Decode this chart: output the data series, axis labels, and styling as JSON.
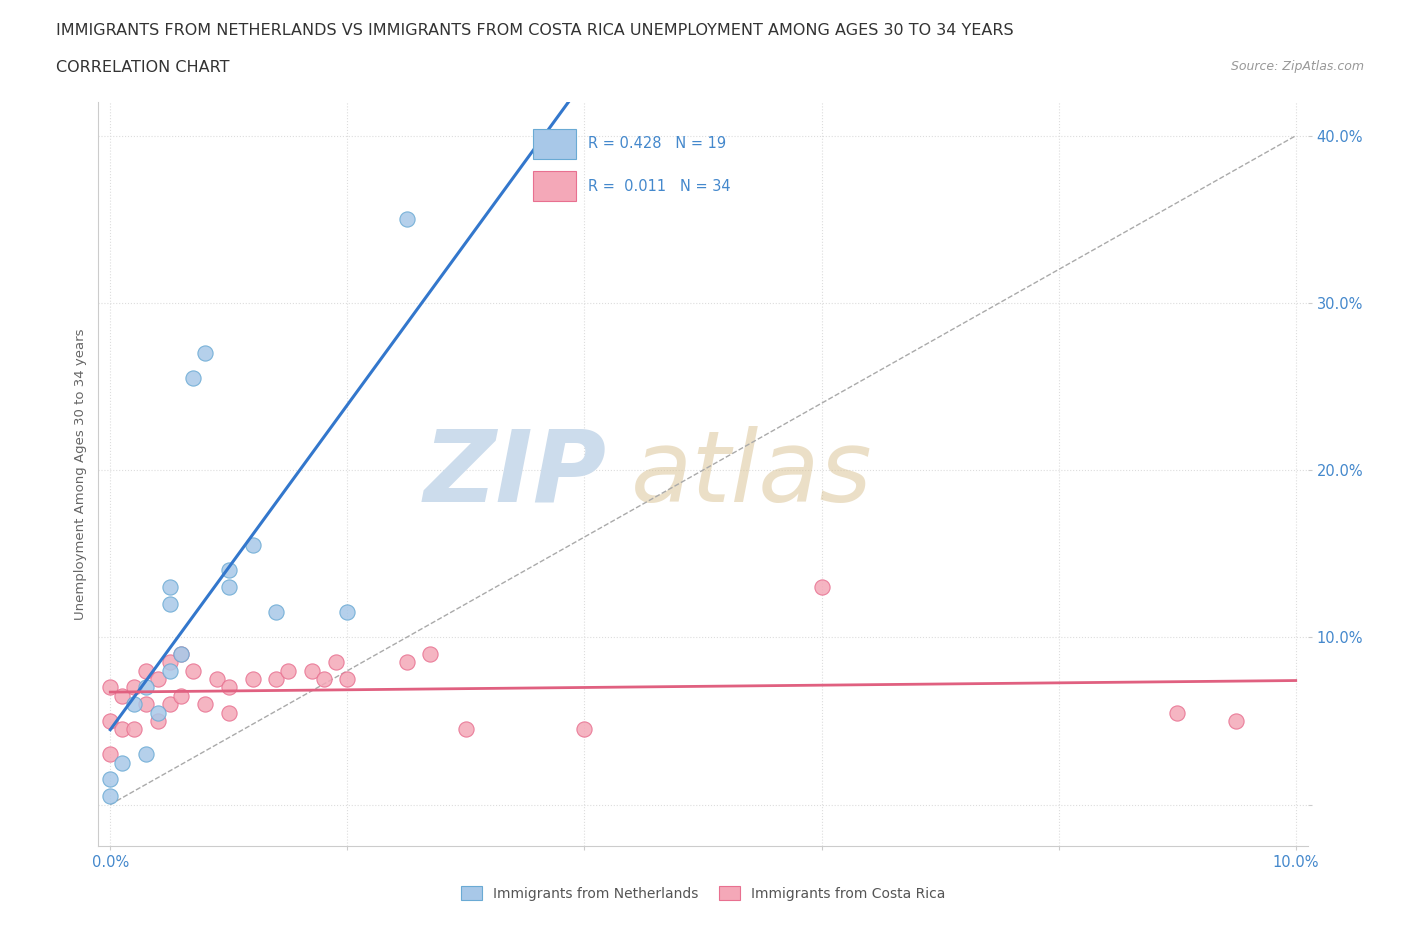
{
  "title_line1": "IMMIGRANTS FROM NETHERLANDS VS IMMIGRANTS FROM COSTA RICA UNEMPLOYMENT AMONG AGES 30 TO 34 YEARS",
  "title_line2": "CORRELATION CHART",
  "source_text": "Source: ZipAtlas.com",
  "ylabel": "Unemployment Among Ages 30 to 34 years",
  "xlim": [
    -0.001,
    0.101
  ],
  "ylim": [
    -0.025,
    0.42
  ],
  "x_ticks": [
    0.0,
    0.02,
    0.04,
    0.06,
    0.08,
    0.1
  ],
  "x_tick_labels": [
    "0.0%",
    "",
    "",
    "",
    "",
    "10.0%"
  ],
  "y_ticks": [
    0.0,
    0.1,
    0.2,
    0.3,
    0.4
  ],
  "y_tick_labels": [
    "",
    "10.0%",
    "20.0%",
    "30.0%",
    "40.0%"
  ],
  "netherlands_color": "#a8c8e8",
  "costa_rica_color": "#f4a8b8",
  "nl_edge_color": "#6aaad4",
  "cr_edge_color": "#e87090",
  "regression_nl_color": "#3377cc",
  "regression_cr_color": "#e06080",
  "dashed_line_color": "#aaaaaa",
  "watermark_color": "#ccdcec",
  "legend_R_netherlands": "0.428",
  "legend_N_netherlands": "19",
  "legend_R_costa_rica": "0.011",
  "legend_N_costa_rica": "34",
  "netherlands_x": [
    0.0,
    0.0,
    0.001,
    0.002,
    0.003,
    0.003,
    0.004,
    0.005,
    0.005,
    0.005,
    0.006,
    0.007,
    0.008,
    0.01,
    0.01,
    0.012,
    0.014,
    0.02,
    0.025
  ],
  "netherlands_y": [
    0.005,
    0.015,
    0.025,
    0.06,
    0.03,
    0.07,
    0.055,
    0.08,
    0.12,
    0.13,
    0.09,
    0.255,
    0.27,
    0.13,
    0.14,
    0.155,
    0.115,
    0.115,
    0.35
  ],
  "costa_rica_x": [
    0.0,
    0.0,
    0.0,
    0.001,
    0.001,
    0.002,
    0.002,
    0.003,
    0.003,
    0.004,
    0.004,
    0.005,
    0.005,
    0.006,
    0.006,
    0.007,
    0.008,
    0.009,
    0.01,
    0.01,
    0.012,
    0.014,
    0.015,
    0.017,
    0.018,
    0.019,
    0.02,
    0.025,
    0.027,
    0.03,
    0.04,
    0.06,
    0.09,
    0.095
  ],
  "costa_rica_y": [
    0.03,
    0.05,
    0.07,
    0.045,
    0.065,
    0.045,
    0.07,
    0.06,
    0.08,
    0.05,
    0.075,
    0.06,
    0.085,
    0.065,
    0.09,
    0.08,
    0.06,
    0.075,
    0.055,
    0.07,
    0.075,
    0.075,
    0.08,
    0.08,
    0.075,
    0.085,
    0.075,
    0.085,
    0.09,
    0.045,
    0.045,
    0.13,
    0.055,
    0.05
  ],
  "background_color": "#ffffff",
  "grid_color": "#dddddd",
  "title_fontsize": 11.5,
  "label_fontsize": 10.5
}
